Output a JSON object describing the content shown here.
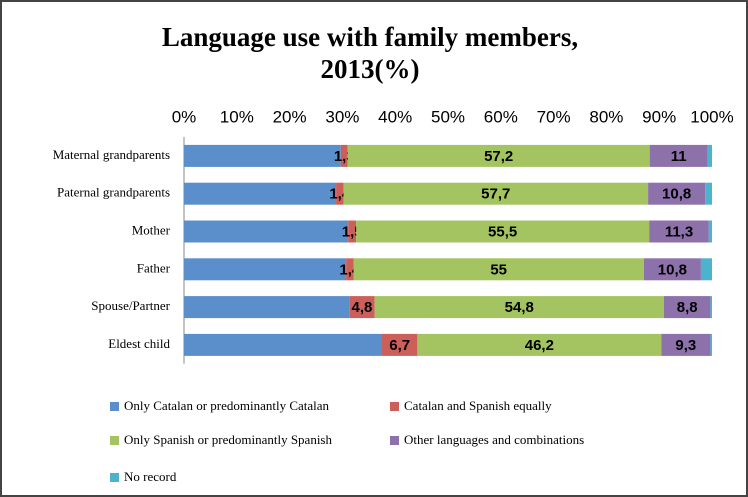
{
  "chart_data": {
    "type": "stacked-bar-horizontal",
    "title": "Language use with family members, 2013(%)",
    "categories": [
      "Maternal grandparents",
      "Paternal grandparents",
      "Mother",
      "Father",
      "Spouse/Partner",
      "Eldest child"
    ],
    "series": [
      {
        "name": "Only Catalan or predominantly Catalan",
        "color": "#5b8fcb",
        "values": [
          29.7,
          28.8,
          31.1,
          30.7,
          31.3,
          37.5
        ]
      },
      {
        "name": "Catalan and Spanish equally",
        "color": "#cd5f5b",
        "values": [
          1.3,
          1.4,
          1.5,
          1.4,
          4.8,
          6.7
        ],
        "value_labels": [
          "1,3",
          "1,4",
          "1,5",
          "1,4",
          "4,8",
          "6,7"
        ]
      },
      {
        "name": "Only Spanish or predominantly Spanish",
        "color": "#a3c461",
        "values": [
          57.2,
          57.7,
          55.5,
          55,
          54.8,
          46.2
        ],
        "value_labels": [
          "57,2",
          "57,7",
          "55,5",
          "55",
          "54,8",
          "46,2"
        ]
      },
      {
        "name": "Other languages and combinations",
        "color": "#8d71ab",
        "values": [
          11,
          10.8,
          11.3,
          10.8,
          8.8,
          9.3
        ],
        "value_labels": [
          "11",
          "10,8",
          "11,3",
          "10,8",
          "8,8",
          "9,3"
        ]
      },
      {
        "name": "No record",
        "color": "#4cb3cf",
        "values": [
          0.8,
          1.3,
          0.6,
          2.1,
          0.3,
          0.3
        ]
      }
    ],
    "xlim": [
      0,
      100
    ],
    "xticks": [
      {
        "value": 0,
        "label": "0%"
      },
      {
        "value": 10,
        "label": "10%"
      },
      {
        "value": 20,
        "label": "20%"
      },
      {
        "value": 30,
        "label": "30%"
      },
      {
        "value": 40,
        "label": "40%"
      },
      {
        "value": 50,
        "label": "50%"
      },
      {
        "value": 60,
        "label": "60%"
      },
      {
        "value": 70,
        "label": "70%"
      },
      {
        "value": 80,
        "label": "80%"
      },
      {
        "value": 90,
        "label": "90%"
      },
      {
        "value": 100,
        "label": "100%"
      }
    ]
  }
}
